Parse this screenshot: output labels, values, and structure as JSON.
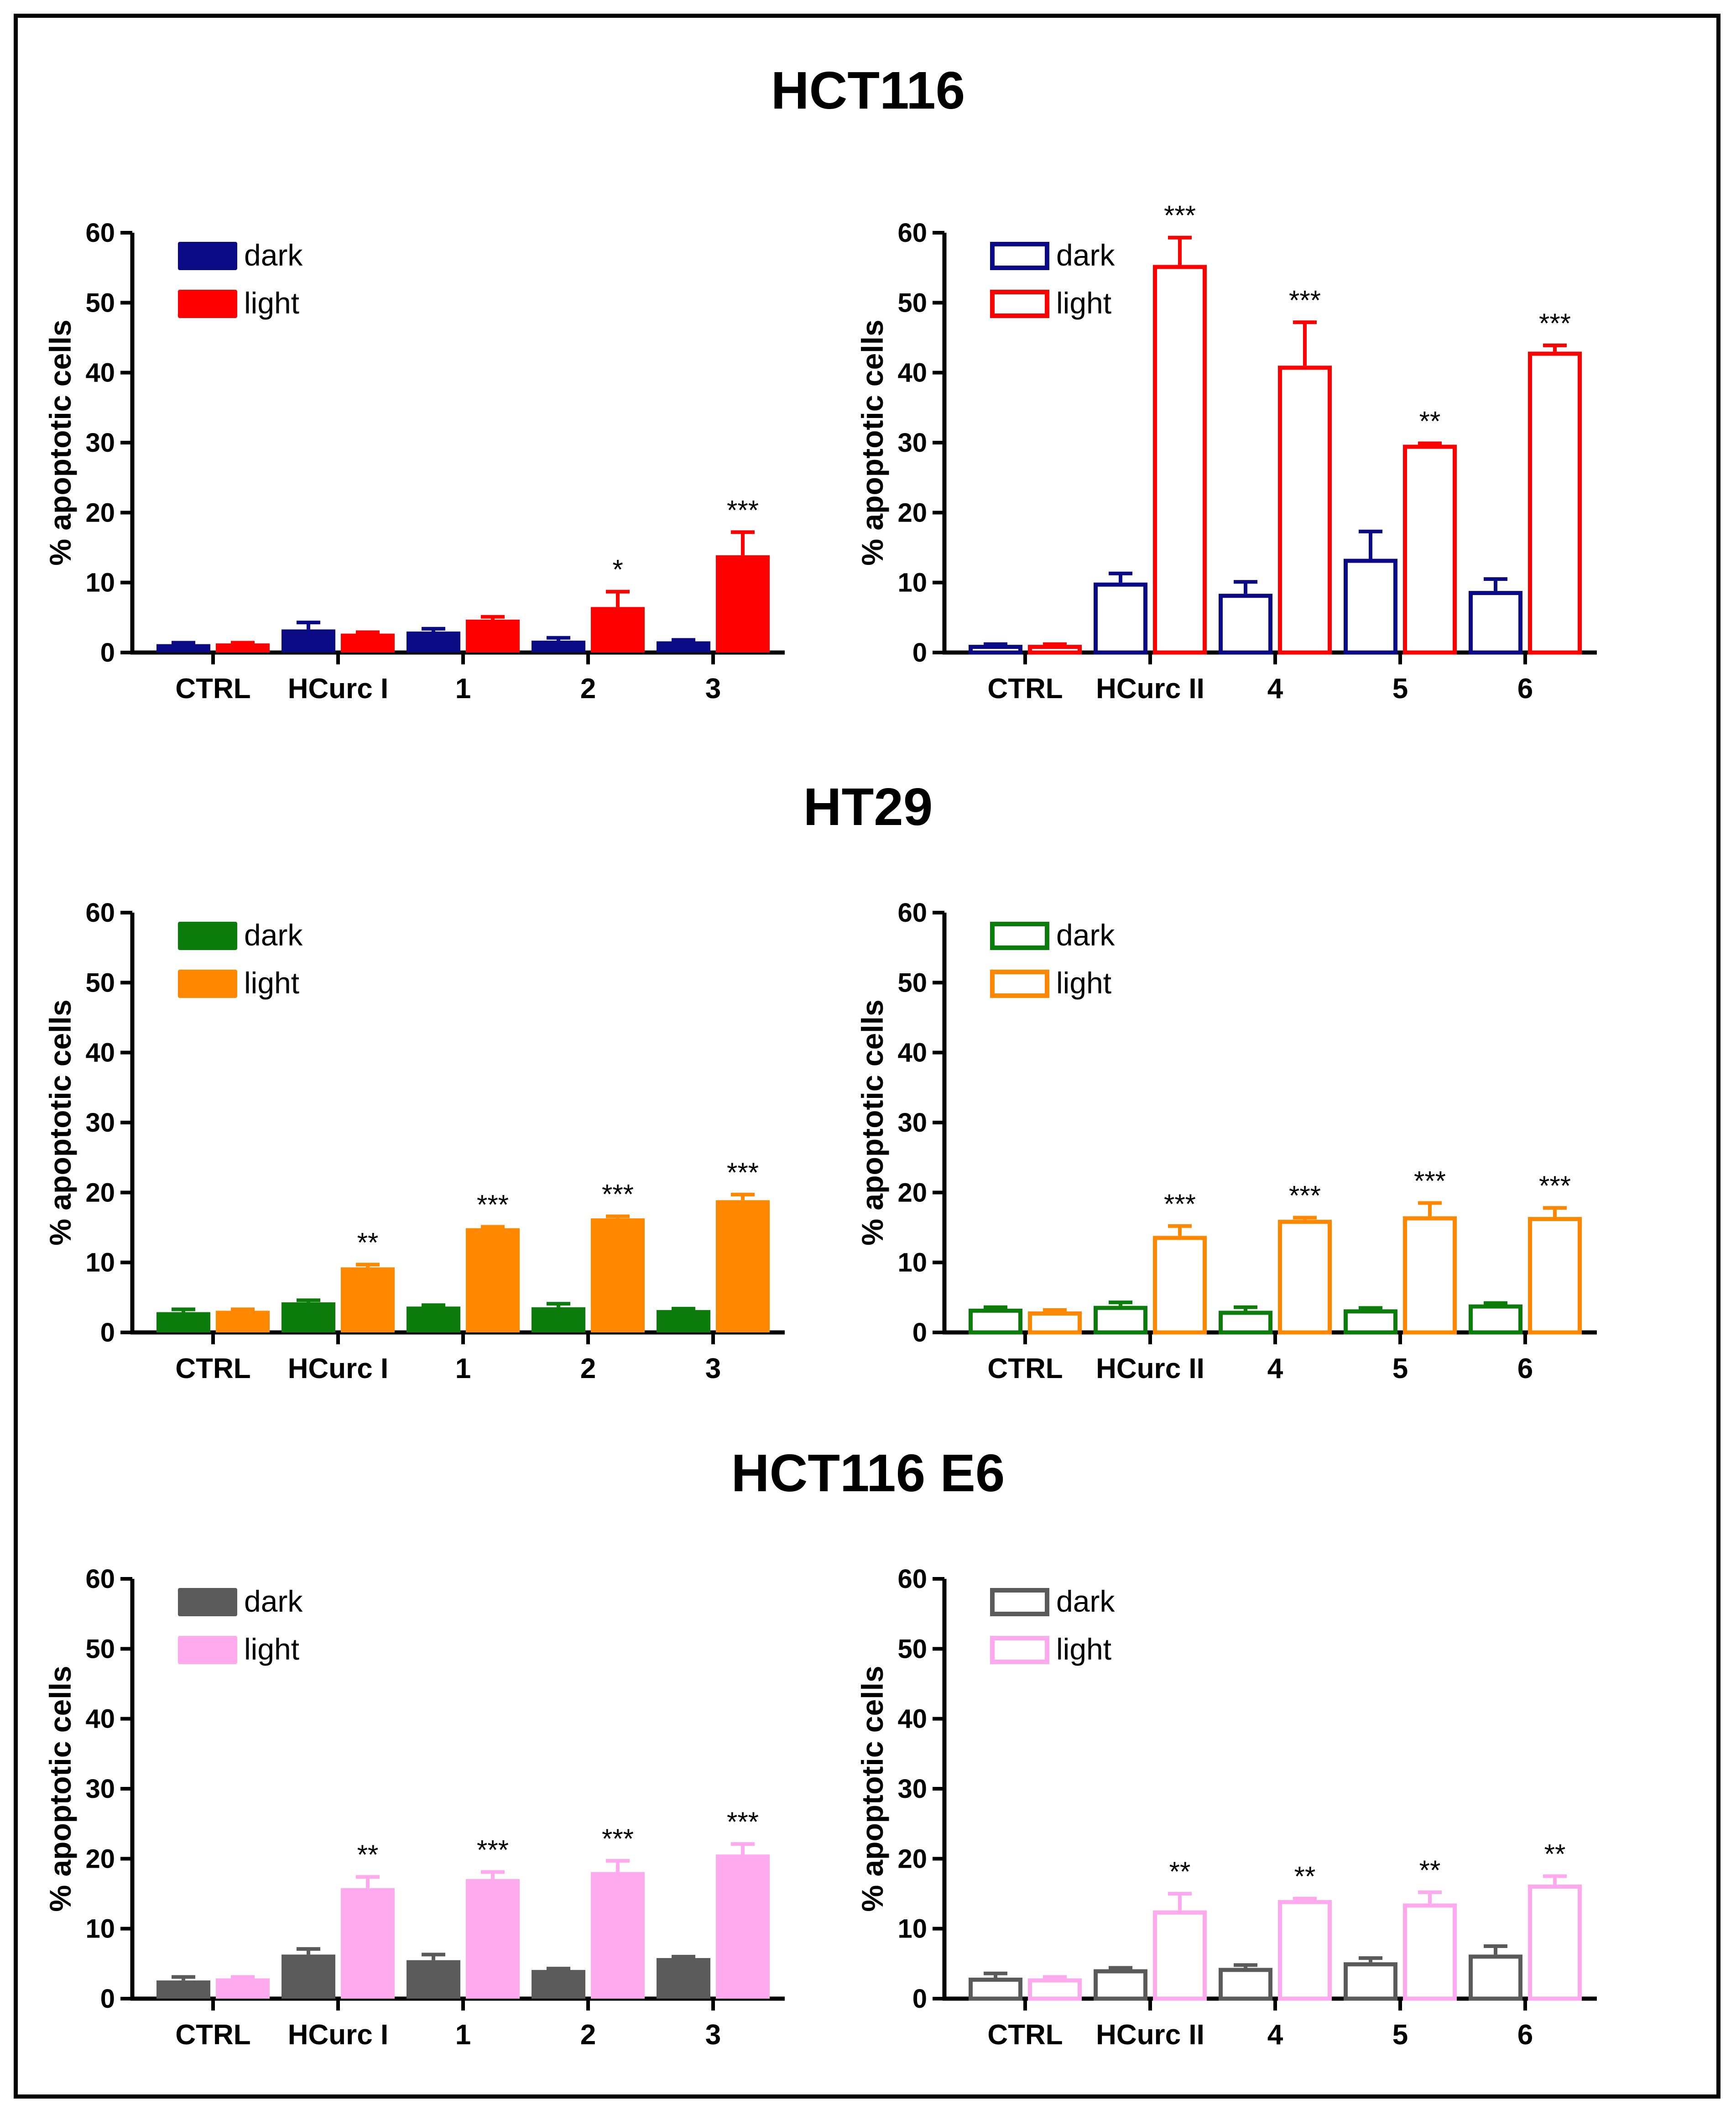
{
  "sections": [
    {
      "title": "HCT116",
      "colors": {
        "dark": "#0a0a84",
        "light": "#ff0000"
      }
    },
    {
      "title": "HT29",
      "colors": {
        "dark": "#0c7c0c",
        "light": "#ff8800"
      }
    },
    {
      "title": "HCT116 E6",
      "colors": {
        "dark": "#5a5a5a",
        "light": "#ffaaee"
      }
    }
  ],
  "chart_data": [
    {
      "type": "bar",
      "section": "HCT116",
      "style": "filled",
      "categories": [
        "CTRL",
        "HCurc I",
        "1",
        "2",
        "3"
      ],
      "series": [
        {
          "name": "dark",
          "color": "#0a0a84",
          "values": [
            1.2,
            3.3,
            3.0,
            1.7,
            1.6
          ],
          "errors": [
            0.2,
            1.0,
            0.4,
            0.4,
            0.2
          ]
        },
        {
          "name": "light",
          "color": "#ff0000",
          "values": [
            1.3,
            2.7,
            4.7,
            6.5,
            13.9
          ],
          "errors": [
            0.1,
            0.2,
            0.4,
            2.2,
            3.3
          ]
        }
      ],
      "significance": [
        "",
        "",
        "",
        "*",
        "***"
      ],
      "title": "",
      "xlabel": "",
      "ylabel": "% apoptotic cells",
      "ylim": [
        0,
        60
      ],
      "yticks": [
        "0",
        "10",
        "20",
        "30",
        "40",
        "50",
        "60"
      ],
      "legend": "top-left"
    },
    {
      "type": "bar",
      "section": "HCT116",
      "style": "outline",
      "categories": [
        "CTRL",
        "HCurc II",
        "4",
        "5",
        "6"
      ],
      "series": [
        {
          "name": "dark",
          "color": "#0a0a84",
          "values": [
            1.1,
            10.0,
            8.4,
            13.4,
            8.8
          ],
          "errors": [
            0.1,
            1.3,
            1.7,
            3.9,
            1.7
          ]
        },
        {
          "name": "light",
          "color": "#ff0000",
          "values": [
            1.1,
            55.4,
            41.0,
            29.7,
            43.0
          ],
          "errors": [
            0.1,
            3.9,
            6.2,
            0.2,
            0.9
          ]
        }
      ],
      "significance": [
        "",
        "***",
        "***",
        "**",
        "***"
      ],
      "title": "",
      "xlabel": "",
      "ylabel": "% apoptotic cells",
      "ylim": [
        0,
        60
      ],
      "yticks": [
        "0",
        "10",
        "20",
        "30",
        "40",
        "50",
        "60"
      ],
      "legend": "top-left"
    },
    {
      "type": "bar",
      "section": "HT29",
      "style": "filled",
      "categories": [
        "CTRL",
        "HCurc I",
        "1",
        "2",
        "3"
      ],
      "series": [
        {
          "name": "dark",
          "color": "#0c7c0c",
          "values": [
            2.9,
            4.3,
            3.7,
            3.6,
            3.2
          ],
          "errors": [
            0.4,
            0.3,
            0.2,
            0.5,
            0.2
          ]
        },
        {
          "name": "light",
          "color": "#ff8800",
          "values": [
            3.1,
            9.3,
            14.9,
            16.3,
            18.9
          ],
          "errors": [
            0.2,
            0.4,
            0.2,
            0.3,
            0.8
          ]
        }
      ],
      "significance": [
        "",
        "**",
        "***",
        "***",
        "***"
      ],
      "title": "",
      "xlabel": "",
      "ylabel": "% apoptotic cells",
      "ylim": [
        0,
        60
      ],
      "yticks": [
        "0",
        "10",
        "20",
        "30",
        "40",
        "50",
        "60"
      ],
      "legend": "top-left"
    },
    {
      "type": "bar",
      "section": "HT29",
      "style": "outline",
      "categories": [
        "CTRL",
        "HCurc II",
        "4",
        "5",
        "6"
      ],
      "series": [
        {
          "name": "dark",
          "color": "#0c7c0c",
          "values": [
            3.4,
            3.8,
            3.1,
            3.3,
            4.0
          ],
          "errors": [
            0.2,
            0.5,
            0.5,
            0.2,
            0.2
          ]
        },
        {
          "name": "light",
          "color": "#ff8800",
          "values": [
            3.0,
            13.8,
            16.1,
            16.6,
            16.5
          ],
          "errors": [
            0.2,
            1.4,
            0.3,
            1.9,
            1.3
          ]
        }
      ],
      "significance": [
        "",
        "***",
        "***",
        "***",
        "***"
      ],
      "title": "",
      "xlabel": "",
      "ylabel": "% apoptotic cells",
      "ylim": [
        0,
        60
      ],
      "yticks": [
        "0",
        "10",
        "20",
        "30",
        "40",
        "50",
        "60"
      ],
      "legend": "top-left"
    },
    {
      "type": "bar",
      "section": "HCT116 E6",
      "style": "filled",
      "categories": [
        "CTRL",
        "HCurc I",
        "1",
        "2",
        "3"
      ],
      "series": [
        {
          "name": "dark",
          "color": "#5a5a5a",
          "values": [
            2.6,
            6.3,
            5.5,
            4.1,
            5.8
          ],
          "errors": [
            0.5,
            0.8,
            0.8,
            0.2,
            0.2
          ]
        },
        {
          "name": "light",
          "color": "#ffaaee",
          "values": [
            2.9,
            15.8,
            17.1,
            18.1,
            20.6
          ],
          "errors": [
            0.2,
            1.6,
            1.0,
            1.6,
            1.5
          ]
        }
      ],
      "significance": [
        "",
        "**",
        "***",
        "***",
        "***"
      ],
      "title": "",
      "xlabel": "",
      "ylabel": "% apoptotic cells",
      "ylim": [
        0,
        60
      ],
      "yticks": [
        "0",
        "10",
        "20",
        "30",
        "40",
        "50",
        "60"
      ],
      "legend": "top-left"
    },
    {
      "type": "bar",
      "section": "HCT116 E6",
      "style": "outline",
      "categories": [
        "CTRL",
        "HCurc II",
        "4",
        "5",
        "6"
      ],
      "series": [
        {
          "name": "dark",
          "color": "#5a5a5a",
          "values": [
            3.0,
            4.2,
            4.4,
            5.2,
            6.3
          ],
          "errors": [
            0.6,
            0.2,
            0.4,
            0.6,
            1.2
          ]
        },
        {
          "name": "light",
          "color": "#ffaaee",
          "values": [
            2.9,
            12.6,
            14.1,
            13.6,
            16.3
          ],
          "errors": [
            0.2,
            2.4,
            0.2,
            1.6,
            1.2
          ]
        }
      ],
      "significance": [
        "",
        "**",
        "**",
        "**",
        "**"
      ],
      "title": "",
      "xlabel": "",
      "ylabel": "% apoptotic cells",
      "ylim": [
        0,
        60
      ],
      "yticks": [
        "0",
        "10",
        "20",
        "30",
        "40",
        "50",
        "60"
      ],
      "legend": "top-left"
    }
  ]
}
